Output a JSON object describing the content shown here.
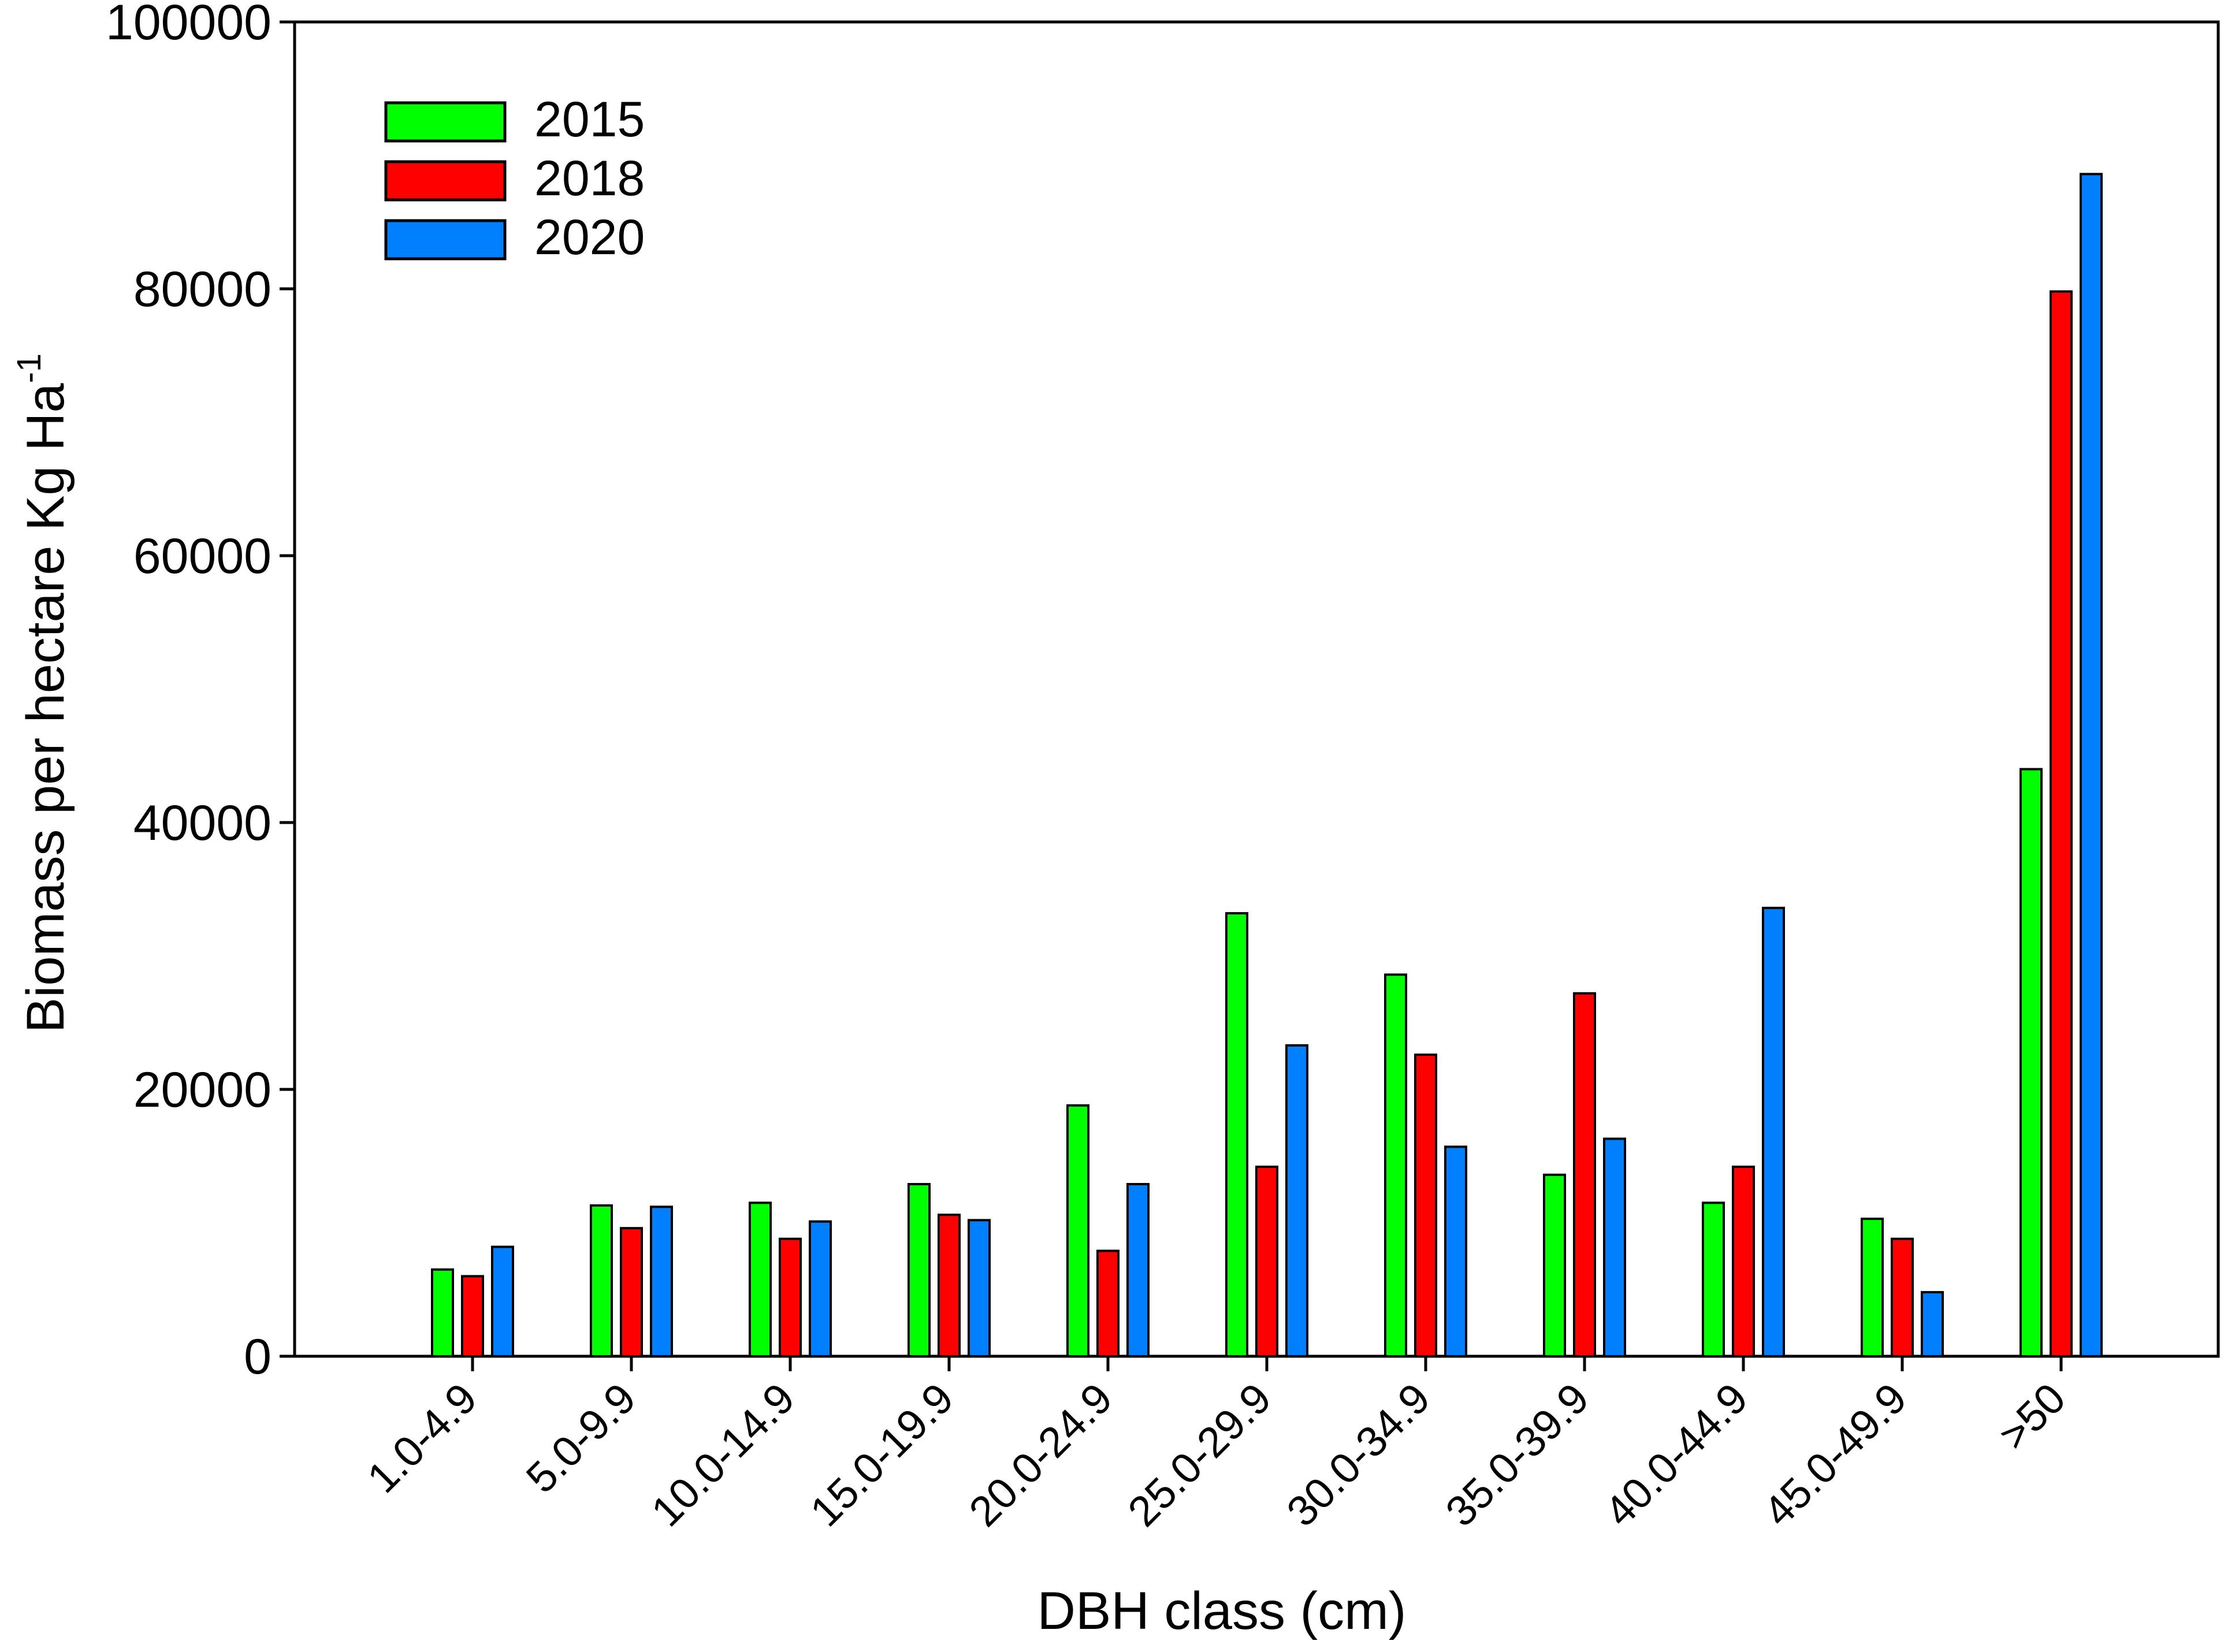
{
  "chart_data": {
    "type": "bar",
    "xlabel": "DBH class (cm)",
    "ylabel": "Biomass per hectare Kg Ha",
    "ylabel_superscript": "-1",
    "ylim": [
      0,
      100000
    ],
    "yticks": [
      0,
      20000,
      40000,
      60000,
      80000,
      100000
    ],
    "grid": false,
    "legend_position": "top-left",
    "categories": [
      "1.0-4.9",
      "5.0-9.9",
      "10.0-14.9",
      "15.0-19.9",
      "20.0-24.9",
      "25.0-29.9",
      "30.0-34.9",
      "35.0-39.9",
      "40.0-44.9",
      "45.0-49.9",
      ">50"
    ],
    "series": [
      {
        "name": "2015",
        "color": "#00ff00",
        "values": [
          6500,
          11300,
          11500,
          12900,
          18800,
          33200,
          28600,
          13600,
          11500,
          10300,
          44000
        ]
      },
      {
        "name": "2018",
        "color": "#ff0000",
        "values": [
          6000,
          9600,
          8800,
          10600,
          7900,
          14200,
          22600,
          27200,
          14200,
          8800,
          79800
        ]
      },
      {
        "name": "2020",
        "color": "#0080ff",
        "values": [
          8200,
          11200,
          10100,
          10200,
          12900,
          23300,
          15700,
          16300,
          33600,
          4800,
          88600
        ]
      }
    ]
  }
}
